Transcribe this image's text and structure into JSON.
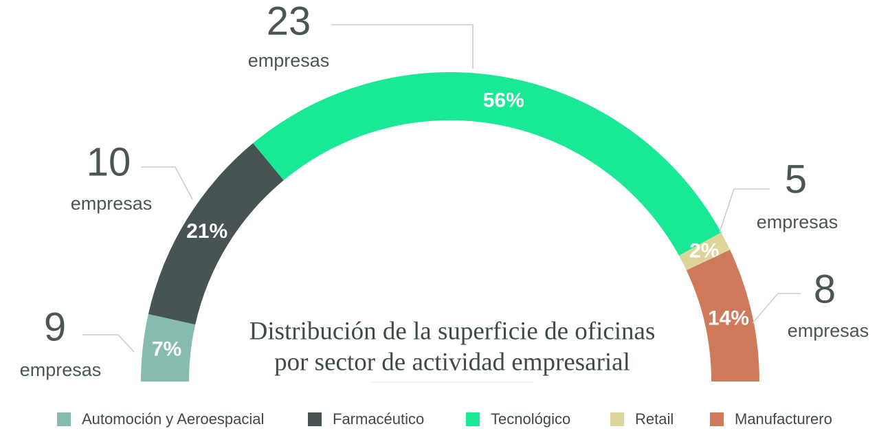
{
  "chart_data": {
    "type": "semi-donut",
    "title": [
      "Distribución de la superficie de oficinas",
      "por sector de actividad empresarial"
    ],
    "categories": [
      "Automoción y Aeroespacial",
      "Farmacéutico",
      "Tecnológico",
      "Retail",
      "Manufacturero"
    ],
    "values": [
      7,
      21,
      56,
      2,
      14
    ],
    "value_labels": [
      "7%",
      "21%",
      "56%",
      "2%",
      "14%"
    ],
    "counts": [
      9,
      10,
      23,
      5,
      8
    ],
    "count_label": "empresas",
    "colors": [
      "#86bbb0",
      "#475454",
      "#19e895",
      "#ddd49a",
      "#d07a5c"
    ],
    "legend": "bottom"
  }
}
